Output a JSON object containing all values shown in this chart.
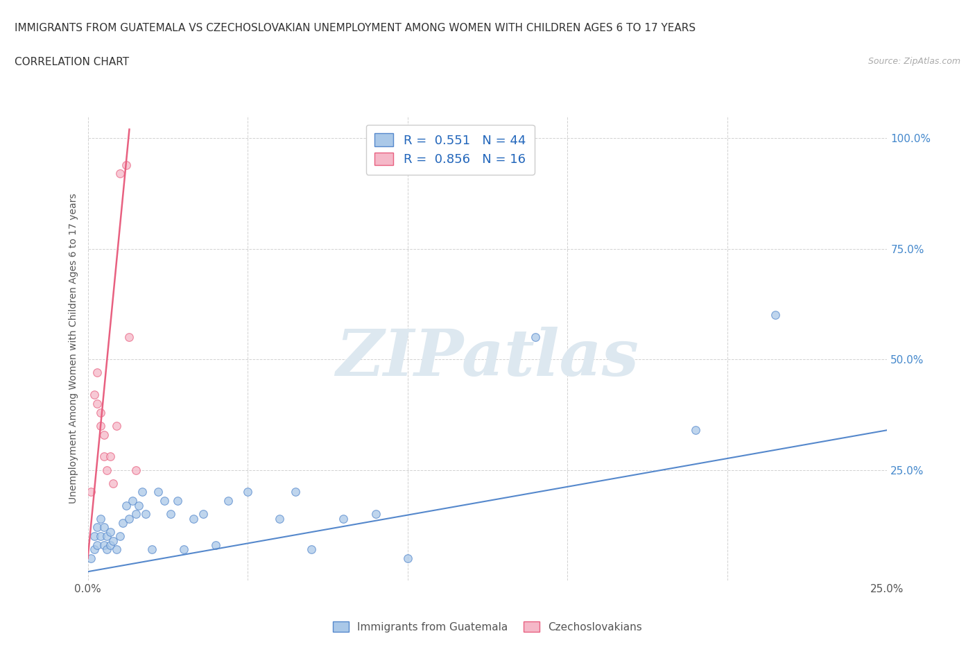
{
  "title_line1": "IMMIGRANTS FROM GUATEMALA VS CZECHOSLOVAKIAN UNEMPLOYMENT AMONG WOMEN WITH CHILDREN AGES 6 TO 17 YEARS",
  "title_line2": "CORRELATION CHART",
  "source_text": "Source: ZipAtlas.com",
  "ylabel": "Unemployment Among Women with Children Ages 6 to 17 years",
  "xlim": [
    0.0,
    0.25
  ],
  "ylim": [
    0.0,
    1.05
  ],
  "x_ticks": [
    0.0,
    0.05,
    0.1,
    0.15,
    0.2,
    0.25
  ],
  "x_tick_labels": [
    "0.0%",
    "",
    "",
    "",
    "",
    "25.0%"
  ],
  "y_ticks": [
    0.0,
    0.25,
    0.5,
    0.75,
    1.0
  ],
  "y_tick_labels_right": [
    "",
    "25.0%",
    "50.0%",
    "75.0%",
    "100.0%"
  ],
  "background_color": "#ffffff",
  "grid_color": "#cccccc",
  "watermark_text": "ZIPatlas",
  "watermark_color": "#dde8f0",
  "blue_color": "#aac8e8",
  "pink_color": "#f5b8c8",
  "blue_line_color": "#5588cc",
  "pink_line_color": "#e86080",
  "blue_scatter_x": [
    0.001,
    0.002,
    0.002,
    0.003,
    0.003,
    0.004,
    0.004,
    0.005,
    0.005,
    0.006,
    0.006,
    0.007,
    0.007,
    0.008,
    0.009,
    0.01,
    0.011,
    0.012,
    0.013,
    0.014,
    0.015,
    0.016,
    0.017,
    0.018,
    0.02,
    0.022,
    0.024,
    0.026,
    0.028,
    0.03,
    0.033,
    0.036,
    0.04,
    0.044,
    0.05,
    0.06,
    0.065,
    0.07,
    0.08,
    0.09,
    0.1,
    0.14,
    0.19,
    0.215
  ],
  "blue_scatter_y": [
    0.05,
    0.07,
    0.1,
    0.08,
    0.12,
    0.1,
    0.14,
    0.08,
    0.12,
    0.07,
    0.1,
    0.08,
    0.11,
    0.09,
    0.07,
    0.1,
    0.13,
    0.17,
    0.14,
    0.18,
    0.15,
    0.17,
    0.2,
    0.15,
    0.07,
    0.2,
    0.18,
    0.15,
    0.18,
    0.07,
    0.14,
    0.15,
    0.08,
    0.18,
    0.2,
    0.14,
    0.2,
    0.07,
    0.14,
    0.15,
    0.05,
    0.55,
    0.34,
    0.6
  ],
  "pink_scatter_x": [
    0.001,
    0.002,
    0.003,
    0.003,
    0.004,
    0.004,
    0.005,
    0.005,
    0.006,
    0.007,
    0.008,
    0.009,
    0.01,
    0.012,
    0.013,
    0.015
  ],
  "pink_scatter_y": [
    0.2,
    0.42,
    0.4,
    0.47,
    0.35,
    0.38,
    0.28,
    0.33,
    0.25,
    0.28,
    0.22,
    0.35,
    0.92,
    0.94,
    0.55,
    0.25
  ],
  "blue_trend_x": [
    0.0,
    0.25
  ],
  "blue_trend_y": [
    0.02,
    0.34
  ],
  "pink_trend_x": [
    0.0,
    0.013
  ],
  "pink_trend_y": [
    0.05,
    1.02
  ],
  "legend_label_blue": "R =  0.551   N = 44",
  "legend_label_pink": "R =  0.856   N = 16",
  "bottom_legend_blue": "Immigrants from Guatemala",
  "bottom_legend_pink": "Czechoslovakians"
}
